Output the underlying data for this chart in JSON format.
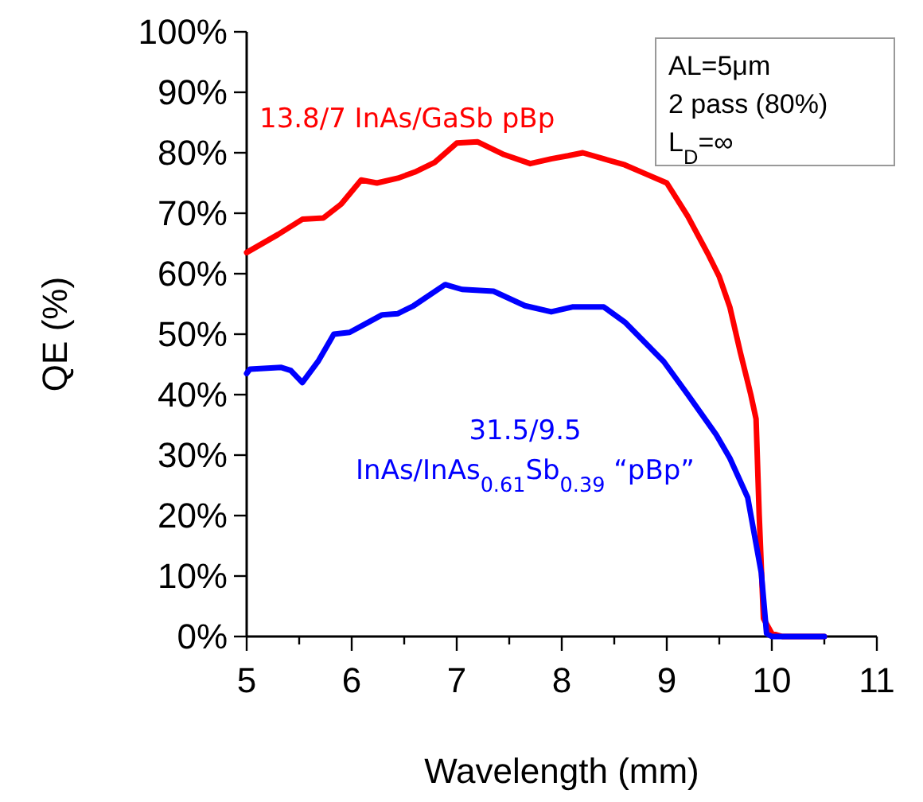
{
  "chart_data": {
    "type": "line",
    "xlabel": "Wavelength (mm)",
    "ylabel": "QE (%)",
    "xlim": [
      5,
      11
    ],
    "xticks": [
      5,
      {
        "value": 5.5,
        "label": null
      },
      6,
      {
        "value": 6.5,
        "label": null
      },
      7,
      {
        "value": 7.5,
        "label": null
      },
      8,
      {
        "value": 8.5,
        "label": null
      },
      9,
      {
        "value": 9.5,
        "label": null
      },
      10,
      {
        "value": 10.5,
        "label": null
      },
      11
    ],
    "ylim": [
      0,
      100
    ],
    "yticks": [
      {
        "value": 0,
        "label": "0%"
      },
      {
        "value": 10,
        "label": "10%"
      },
      {
        "value": 20,
        "label": "20%"
      },
      {
        "value": 30,
        "label": "30%"
      },
      {
        "value": 40,
        "label": "40%"
      },
      {
        "value": 50,
        "label": "50%"
      },
      {
        "value": 60,
        "label": "60%"
      },
      {
        "value": 70,
        "label": "70%"
      },
      {
        "value": 80,
        "label": "80%"
      },
      {
        "value": 90,
        "label": "90%"
      },
      {
        "value": 100,
        "label": "100%"
      }
    ],
    "grid": false,
    "marker": "none",
    "line_style": "solid",
    "series": [
      {
        "name": "13.8/7 InAs/GaSb pBp",
        "color": "#ff0000",
        "x": [
          5.0,
          5.3,
          5.53,
          5.73,
          5.9,
          6.09,
          6.24,
          6.44,
          6.6,
          6.79,
          7.0,
          7.2,
          7.45,
          7.7,
          7.9,
          8.06,
          8.2,
          8.4,
          8.6,
          8.8,
          9.0,
          9.2,
          9.4,
          9.5,
          9.6,
          9.7,
          9.8,
          9.85,
          9.88,
          9.92,
          10.0,
          10.1,
          10.5
        ],
        "values": [
          63.5,
          66.5,
          69,
          69.2,
          71.5,
          75.5,
          75,
          75.8,
          76.8,
          78.4,
          81.6,
          81.8,
          79.7,
          78.2,
          79,
          79.5,
          80,
          79,
          78,
          76.5,
          75,
          69.5,
          63,
          59.5,
          54.5,
          47,
          40,
          36,
          20,
          3,
          0.5,
          0,
          0
        ]
      },
      {
        "name": "31.5/9.5\nInAs/InAs$_{0.61}$Sb$_{0.39}$ “pBp”",
        "color": "#0000ff",
        "x": [
          5.0,
          5.03,
          5.33,
          5.42,
          5.53,
          5.68,
          5.83,
          5.98,
          6.14,
          6.29,
          6.44,
          6.59,
          6.89,
          7.05,
          7.35,
          7.65,
          7.9,
          8.1,
          8.4,
          8.6,
          8.97,
          9.2,
          9.47,
          9.6,
          9.77,
          9.9,
          9.95,
          10.0,
          10.5
        ],
        "values": [
          43.5,
          44.2,
          44.5,
          44,
          42,
          45.5,
          50,
          50.3,
          51.8,
          53.2,
          53.4,
          54.7,
          58.2,
          57.4,
          57.1,
          54.7,
          53.7,
          54.5,
          54.5,
          52,
          45.5,
          40,
          33.4,
          29.5,
          23,
          10.5,
          0.5,
          0,
          0
        ]
      }
    ],
    "annotations": [
      "AL=5μm",
      "2 pass (80%)",
      "L$_{D}$=∞"
    ]
  }
}
